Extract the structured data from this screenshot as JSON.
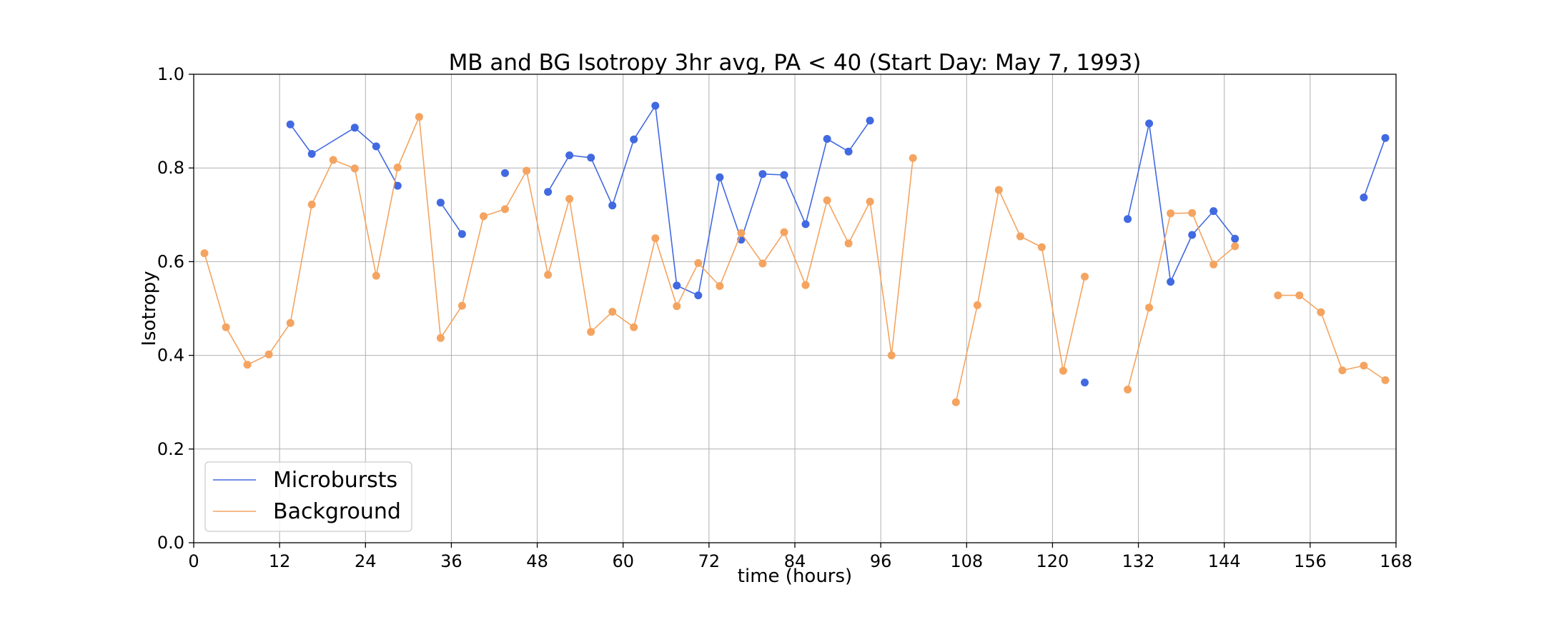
{
  "chart_data": {
    "type": "line",
    "title": "MB and BG Isotropy 3hr avg, PA < 40 (Start Day: May 7, 1993)",
    "xlabel": "time (hours)",
    "ylabel": "Isotropy",
    "xlim": [
      0,
      168
    ],
    "ylim": [
      0,
      1.0
    ],
    "xticks": [
      0,
      12,
      24,
      36,
      48,
      60,
      72,
      84,
      96,
      108,
      120,
      132,
      144,
      156,
      168
    ],
    "yticks": [
      0.0,
      0.2,
      0.4,
      0.6,
      0.8,
      1.0
    ],
    "xtick_labels": [
      "0",
      "12",
      "24",
      "36",
      "48",
      "60",
      "72",
      "84",
      "96",
      "108",
      "120",
      "132",
      "144",
      "156",
      "168"
    ],
    "ytick_labels": [
      "0.0",
      "0.2",
      "0.4",
      "0.6",
      "0.8",
      "1.0"
    ],
    "grid": true,
    "legend_position": "lower-left",
    "series": [
      {
        "name": "Microbursts",
        "color": "#4169e1",
        "segments": [
          [
            [
              13.5,
              0.893
            ],
            [
              16.5,
              0.83
            ],
            [
              22.5,
              0.886
            ],
            [
              25.5,
              0.846
            ],
            [
              28.5,
              0.762
            ]
          ],
          [
            [
              34.5,
              0.726
            ],
            [
              37.5,
              0.659
            ]
          ],
          [
            [
              43.5,
              0.789
            ]
          ],
          [
            [
              49.5,
              0.749
            ],
            [
              52.5,
              0.827
            ],
            [
              55.5,
              0.822
            ],
            [
              58.5,
              0.72
            ],
            [
              61.5,
              0.861
            ],
            [
              64.5,
              0.933
            ],
            [
              67.5,
              0.549
            ],
            [
              70.5,
              0.528
            ],
            [
              73.5,
              0.78
            ],
            [
              76.5,
              0.647
            ],
            [
              79.5,
              0.787
            ],
            [
              82.5,
              0.785
            ],
            [
              85.5,
              0.68
            ],
            [
              88.5,
              0.862
            ],
            [
              91.5,
              0.835
            ],
            [
              94.5,
              0.901
            ]
          ],
          [
            [
              124.5,
              0.342
            ]
          ],
          [
            [
              130.5,
              0.691
            ],
            [
              133.5,
              0.895
            ],
            [
              136.5,
              0.557
            ],
            [
              139.5,
              0.657
            ],
            [
              142.5,
              0.708
            ],
            [
              145.5,
              0.649
            ]
          ],
          [
            [
              163.5,
              0.737
            ],
            [
              166.5,
              0.864
            ]
          ]
        ]
      },
      {
        "name": "Background",
        "color": "#f4a460",
        "segments": [
          [
            [
              1.5,
              0.618
            ],
            [
              4.5,
              0.46
            ],
            [
              7.5,
              0.38
            ],
            [
              10.5,
              0.402
            ],
            [
              13.5,
              0.469
            ],
            [
              16.5,
              0.722
            ],
            [
              19.5,
              0.817
            ],
            [
              22.5,
              0.799
            ],
            [
              25.5,
              0.57
            ],
            [
              28.5,
              0.801
            ],
            [
              31.5,
              0.909
            ],
            [
              34.5,
              0.437
            ],
            [
              37.5,
              0.506
            ],
            [
              40.5,
              0.697
            ],
            [
              43.5,
              0.712
            ],
            [
              46.5,
              0.794
            ],
            [
              49.5,
              0.572
            ],
            [
              52.5,
              0.734
            ],
            [
              55.5,
              0.45
            ],
            [
              58.5,
              0.493
            ],
            [
              61.5,
              0.46
            ],
            [
              64.5,
              0.65
            ],
            [
              67.5,
              0.505
            ],
            [
              70.5,
              0.597
            ],
            [
              73.5,
              0.548
            ],
            [
              76.5,
              0.661
            ],
            [
              79.5,
              0.596
            ],
            [
              82.5,
              0.663
            ],
            [
              85.5,
              0.55
            ],
            [
              88.5,
              0.731
            ],
            [
              91.5,
              0.639
            ],
            [
              94.5,
              0.728
            ],
            [
              97.5,
              0.4
            ],
            [
              100.5,
              0.821
            ]
          ],
          [
            [
              106.5,
              0.3
            ],
            [
              109.5,
              0.507
            ],
            [
              112.5,
              0.753
            ],
            [
              115.5,
              0.654
            ],
            [
              118.5,
              0.631
            ],
            [
              121.5,
              0.367
            ],
            [
              124.5,
              0.568
            ]
          ],
          [
            [
              130.5,
              0.327
            ],
            [
              133.5,
              0.502
            ],
            [
              136.5,
              0.703
            ],
            [
              139.5,
              0.704
            ],
            [
              142.5,
              0.594
            ],
            [
              145.5,
              0.633
            ]
          ],
          [
            [
              151.5,
              0.528
            ],
            [
              154.5,
              0.528
            ],
            [
              157.5,
              0.492
            ],
            [
              160.5,
              0.368
            ],
            [
              163.5,
              0.378
            ],
            [
              166.5,
              0.347
            ]
          ]
        ]
      }
    ]
  }
}
